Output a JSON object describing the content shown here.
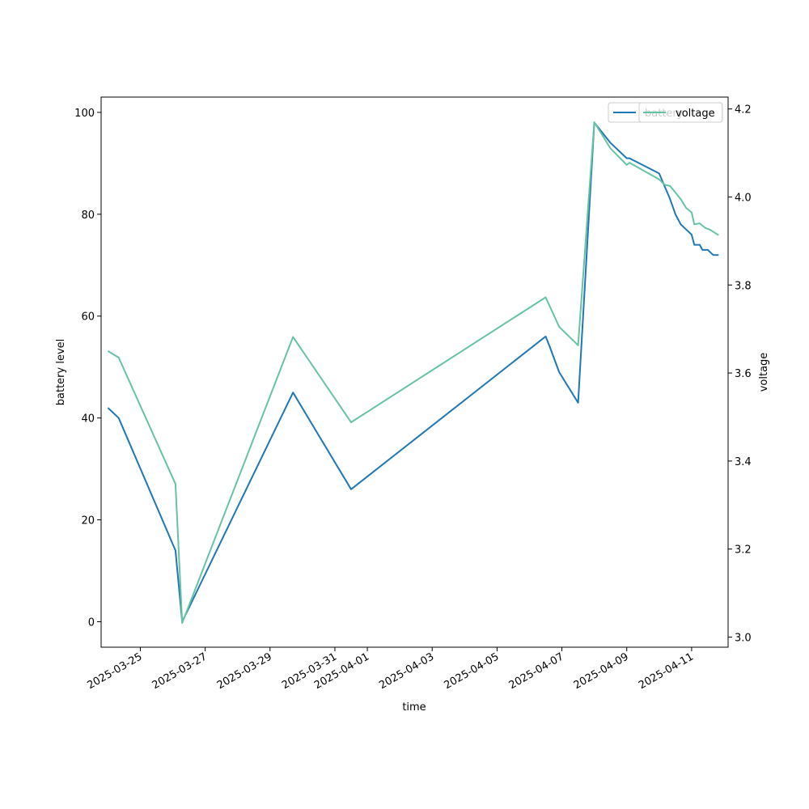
{
  "chart_data": {
    "type": "line",
    "xlabel": "time",
    "ylabel_left": "battery level",
    "ylabel_right": "voltage",
    "x_ticks": [
      "2025-03-25",
      "2025-03-27",
      "2025-03-29",
      "2025-03-31",
      "2025-04-01",
      "2025-04-03",
      "2025-04-05",
      "2025-04-07",
      "2025-04-09",
      "2025-04-11"
    ],
    "x_range": [
      "2025-03-23T19:00",
      "2025-04-12T03:00"
    ],
    "y_left_ticks": [
      "0",
      "20",
      "40",
      "60",
      "80",
      "100"
    ],
    "y_left_range": [
      -5,
      103
    ],
    "y_right_ticks": [
      "3.0",
      "3.2",
      "3.4",
      "3.6",
      "3.8",
      "4.0",
      "4.2"
    ],
    "y_right_range": [
      2.977,
      4.227
    ],
    "legend": {
      "position": "top-right",
      "entries": [
        "battery",
        "voltage"
      ]
    },
    "colors": {
      "battery": "#1f77b4",
      "voltage": "#66c2a5"
    },
    "series": [
      {
        "name": "battery",
        "axis": "left",
        "points": [
          [
            "2025-03-24T00:00",
            42
          ],
          [
            "2025-03-24T08:00",
            40
          ],
          [
            "2025-03-26T02:00",
            14
          ],
          [
            "2025-03-26T07:00",
            0
          ],
          [
            "2025-03-29T17:00",
            45
          ],
          [
            "2025-03-31T12:00",
            26
          ],
          [
            "2025-04-06T12:00",
            56
          ],
          [
            "2025-04-06T15:00",
            54
          ],
          [
            "2025-04-06T22:00",
            49
          ],
          [
            "2025-04-07T12:00",
            43
          ],
          [
            "2025-04-08T00:00",
            98
          ],
          [
            "2025-04-08T12:00",
            94
          ],
          [
            "2025-04-09T00:00",
            91
          ],
          [
            "2025-04-09T02:00",
            91
          ],
          [
            "2025-04-10T00:00",
            88
          ],
          [
            "2025-04-10T08:00",
            83
          ],
          [
            "2025-04-10T12:00",
            80
          ],
          [
            "2025-04-10T16:00",
            78
          ],
          [
            "2025-04-10T20:00",
            77
          ],
          [
            "2025-04-11T00:00",
            76
          ],
          [
            "2025-04-11T02:00",
            74
          ],
          [
            "2025-04-11T06:00",
            74
          ],
          [
            "2025-04-11T08:00",
            73
          ],
          [
            "2025-04-11T12:00",
            73
          ],
          [
            "2025-04-11T16:00",
            72
          ],
          [
            "2025-04-11T20:00",
            72
          ]
        ]
      },
      {
        "name": "voltage",
        "axis": "right",
        "points": [
          [
            "2025-03-24T00:00",
            3.65
          ],
          [
            "2025-03-24T08:00",
            3.635
          ],
          [
            "2025-03-26T02:00",
            3.348
          ],
          [
            "2025-03-26T07:00",
            3.032
          ],
          [
            "2025-03-29T17:00",
            3.682
          ],
          [
            "2025-03-31T12:00",
            3.488
          ],
          [
            "2025-04-06T12:00",
            3.772
          ],
          [
            "2025-04-06T22:00",
            3.705
          ],
          [
            "2025-04-07T12:00",
            3.663
          ],
          [
            "2025-04-08T00:00",
            4.17
          ],
          [
            "2025-04-08T12:00",
            4.11
          ],
          [
            "2025-04-09T00:00",
            4.073
          ],
          [
            "2025-04-09T02:00",
            4.078
          ],
          [
            "2025-04-10T00:00",
            4.04
          ],
          [
            "2025-04-10T04:00",
            4.028
          ],
          [
            "2025-04-10T08:00",
            4.025
          ],
          [
            "2025-04-10T12:00",
            4.01
          ],
          [
            "2025-04-10T16:00",
            3.995
          ],
          [
            "2025-04-10T20:00",
            3.975
          ],
          [
            "2025-04-11T00:00",
            3.965
          ],
          [
            "2025-04-11T02:00",
            3.938
          ],
          [
            "2025-04-11T06:00",
            3.94
          ],
          [
            "2025-04-11T10:00",
            3.93
          ],
          [
            "2025-04-11T14:00",
            3.925
          ],
          [
            "2025-04-11T20:00",
            3.913
          ]
        ]
      }
    ]
  }
}
